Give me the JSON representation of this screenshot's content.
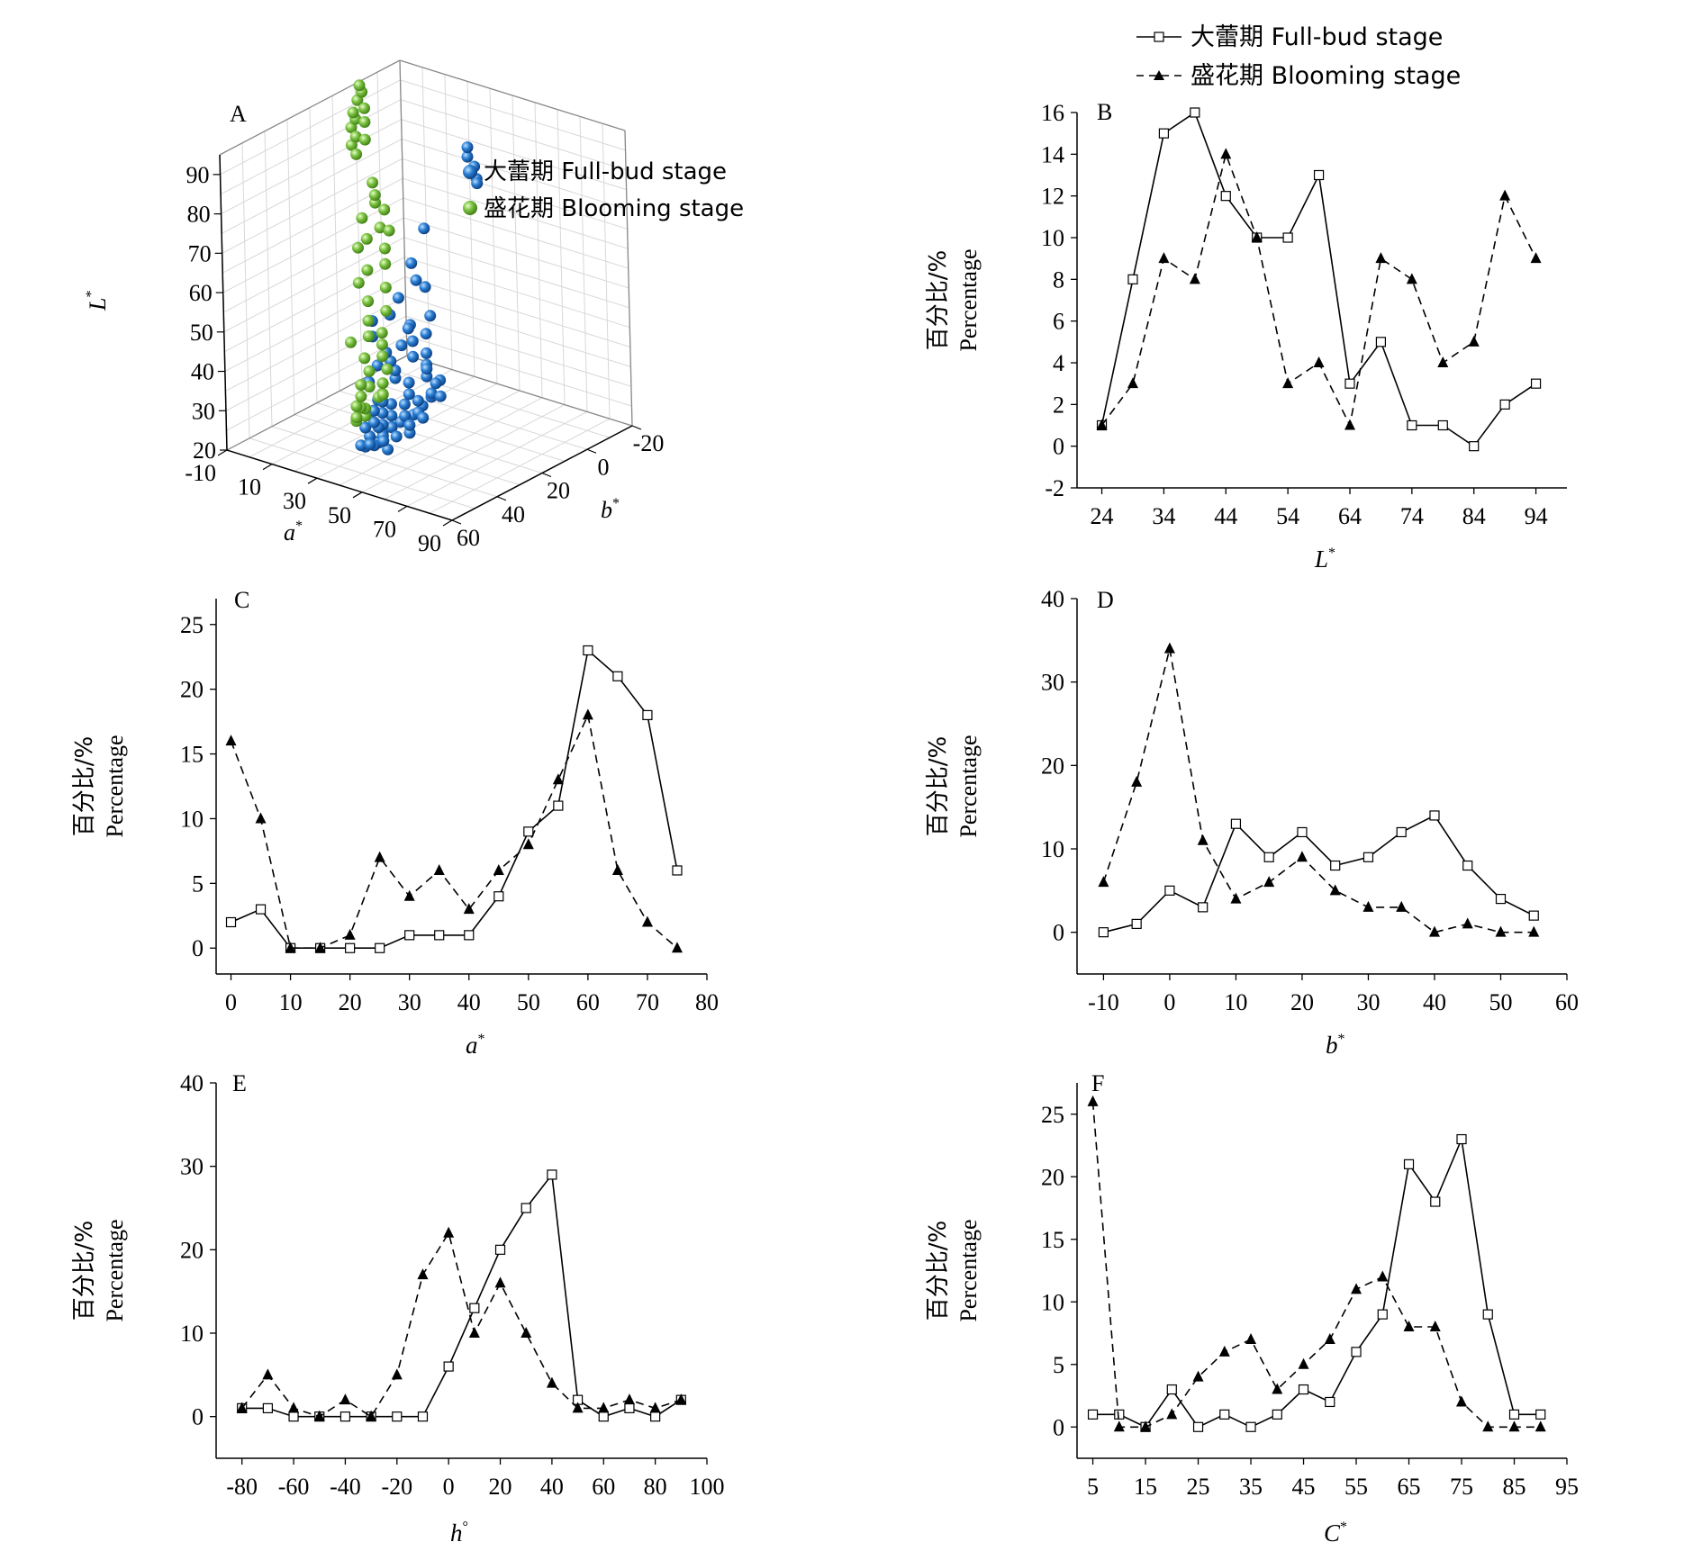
{
  "legend": {
    "full_bud": "大蕾期 Full-bud stage",
    "blooming": "盛花期 Blooming stage"
  },
  "ylabel_cn": "百分比/%",
  "ylabel_en": "Percentage",
  "chart_data": [
    {
      "id": "A",
      "panel": "A",
      "type": "scatter3d",
      "axes": {
        "x": "a*",
        "y": "b*",
        "z": "L*"
      },
      "xlim": [
        -10,
        90
      ],
      "ylim": [
        -20,
        60
      ],
      "zlim": [
        20,
        95
      ],
      "x_ticks": [
        "-10",
        "10",
        "30",
        "50",
        "70",
        "90"
      ],
      "y_ticks": [
        "-20",
        "0",
        "20",
        "40",
        "60"
      ],
      "z_ticks": [
        "20",
        "30",
        "40",
        "50",
        "60",
        "70",
        "80",
        "90"
      ],
      "xlabel": "a",
      "ylabel": "b",
      "zlabel": "L",
      "label_sup": "*",
      "series": [
        {
          "name": "大蕾期 Full-bud stage",
          "color": "#1f6fc4",
          "points": [
            [
              55,
              15,
              95
            ],
            [
              60,
              20,
              95
            ],
            [
              65,
              22,
              94
            ],
            [
              68,
              24,
              92
            ],
            [
              62,
              18,
              88
            ],
            [
              50,
              30,
              78
            ],
            [
              48,
              34,
              70
            ],
            [
              52,
              36,
              67
            ],
            [
              56,
              36,
              66
            ],
            [
              48,
              40,
              63
            ],
            [
              60,
              38,
              60
            ],
            [
              55,
              42,
              58
            ],
            [
              62,
              42,
              57
            ],
            [
              58,
              44,
              55
            ],
            [
              64,
              44,
              53
            ],
            [
              55,
              46,
              54
            ],
            [
              60,
              46,
              52
            ],
            [
              68,
              48,
              52
            ],
            [
              66,
              46,
              50
            ],
            [
              70,
              50,
              50
            ],
            [
              72,
              48,
              48
            ],
            [
              62,
              50,
              47
            ],
            [
              58,
              52,
              48
            ],
            [
              74,
              52,
              47
            ],
            [
              76,
              50,
              46
            ],
            [
              64,
              52,
              45
            ],
            [
              70,
              54,
              45
            ],
            [
              66,
              56,
              44
            ],
            [
              60,
              56,
              43
            ],
            [
              72,
              56,
              43
            ],
            [
              68,
              58,
              42
            ],
            [
              74,
              56,
              42
            ],
            [
              62,
              58,
              41
            ],
            [
              70,
              58,
              40
            ],
            [
              64,
              60,
              39
            ],
            [
              58,
              58,
              38
            ],
            [
              66,
              60,
              37
            ],
            [
              60,
              60,
              36
            ],
            [
              72,
              60,
              39
            ],
            [
              56,
              56,
              40
            ],
            [
              52,
              54,
              42
            ],
            [
              50,
              50,
              40
            ],
            [
              48,
              52,
              38
            ],
            [
              54,
              56,
              36
            ],
            [
              58,
              60,
              34
            ],
            [
              62,
              60,
              33
            ],
            [
              50,
              56,
              33
            ],
            [
              54,
              58,
              32
            ],
            [
              46,
              50,
              34
            ],
            [
              44,
              48,
              36
            ],
            [
              40,
              46,
              42
            ],
            [
              42,
              44,
              46
            ],
            [
              38,
              42,
              52
            ],
            [
              36,
              40,
              55
            ],
            [
              44,
              40,
              58
            ],
            [
              50,
              38,
              55
            ],
            [
              46,
              44,
              50
            ],
            [
              52,
              48,
              50
            ],
            [
              56,
              50,
              49
            ],
            [
              80,
              54,
              52
            ],
            [
              78,
              56,
              48
            ],
            [
              76,
              58,
              46
            ],
            [
              74,
              60,
              44
            ],
            [
              70,
              62,
              42
            ],
            [
              66,
              62,
              40
            ],
            [
              62,
              62,
              38
            ],
            [
              58,
              62,
              35
            ],
            [
              54,
              60,
              33
            ],
            [
              50,
              58,
              31
            ],
            [
              46,
              56,
              30
            ],
            [
              48,
              54,
              30
            ],
            [
              52,
              52,
              31
            ],
            [
              42,
              50,
              32
            ]
          ]
        },
        {
          "name": "盛花期 Blooming stage",
          "color": "#7ac142",
          "points": [
            [
              -8,
              0,
              95
            ],
            [
              -6,
              1,
              94
            ],
            [
              -7,
              2,
              92
            ],
            [
              -5,
              1,
              90
            ],
            [
              -8,
              3,
              89
            ],
            [
              -6,
              4,
              88
            ],
            [
              -4,
              2,
              87
            ],
            [
              -7,
              5,
              86
            ],
            [
              -5,
              5,
              84
            ],
            [
              -3,
              3,
              83
            ],
            [
              -6,
              6,
              82
            ],
            [
              -4,
              6,
              80
            ],
            [
              5,
              8,
              75
            ],
            [
              8,
              10,
              73
            ],
            [
              10,
              12,
              72
            ],
            [
              12,
              10,
              70
            ],
            [
              6,
              14,
              68
            ],
            [
              14,
              14,
              67
            ],
            [
              16,
              12,
              66
            ],
            [
              10,
              16,
              64
            ],
            [
              18,
              16,
              63
            ],
            [
              8,
              18,
              62
            ],
            [
              20,
              18,
              60
            ],
            [
              14,
              20,
              58
            ],
            [
              22,
              20,
              55
            ],
            [
              12,
              22,
              55
            ],
            [
              18,
              24,
              52
            ],
            [
              24,
              22,
              50
            ],
            [
              20,
              26,
              48
            ],
            [
              26,
              26,
              46
            ],
            [
              22,
              28,
              45
            ],
            [
              28,
              28,
              44
            ],
            [
              16,
              30,
              43
            ],
            [
              30,
              30,
              42
            ],
            [
              24,
              32,
              41
            ],
            [
              34,
              32,
              40
            ],
            [
              28,
              34,
              39
            ],
            [
              36,
              36,
              38
            ],
            [
              32,
              38,
              37
            ],
            [
              38,
              40,
              36
            ],
            [
              40,
              40,
              37
            ],
            [
              42,
              42,
              38
            ],
            [
              44,
              44,
              39
            ],
            [
              46,
              46,
              40
            ],
            [
              48,
              48,
              41
            ],
            [
              50,
              50,
              42
            ],
            [
              36,
              44,
              34
            ],
            [
              32,
              40,
              32
            ],
            [
              28,
              38,
              31
            ],
            [
              24,
              36,
              30
            ],
            [
              40,
              48,
              35
            ],
            [
              44,
              50,
              36
            ],
            [
              38,
              46,
              33
            ],
            [
              20,
              30,
              30
            ],
            [
              16,
              26,
              31
            ],
            [
              30,
              42,
              30
            ],
            [
              34,
              46,
              31
            ]
          ]
        }
      ]
    },
    {
      "id": "B",
      "panel": "B",
      "type": "line",
      "x": [
        24,
        29,
        34,
        39,
        44,
        49,
        54,
        59,
        64,
        69,
        74,
        79,
        84,
        89,
        94
      ],
      "series": [
        {
          "name": "大蕾期 Full-bud stage",
          "values": [
            1,
            8,
            15,
            16,
            12,
            10,
            10,
            13,
            3,
            5,
            1,
            1,
            0,
            2,
            3
          ]
        },
        {
          "name": "盛花期 Blooming stage",
          "values": [
            1,
            3,
            9,
            8,
            14,
            10,
            3,
            4,
            1,
            9,
            8,
            4,
            5,
            12,
            9
          ]
        }
      ],
      "xlim": [
        20,
        99
      ],
      "ylim": [
        -2,
        16
      ],
      "x_ticks": [
        24,
        34,
        44,
        54,
        64,
        74,
        84,
        94
      ],
      "y_ticks": [
        -2,
        0,
        2,
        4,
        6,
        8,
        10,
        12,
        14,
        16
      ],
      "xlabel": "L",
      "label_sup": "*",
      "ylabel": "百分比/% Percentage"
    },
    {
      "id": "C",
      "panel": "C",
      "type": "line",
      "x": [
        0,
        5,
        10,
        15,
        20,
        25,
        30,
        35,
        40,
        45,
        50,
        55,
        60,
        65,
        70,
        75
      ],
      "series": [
        {
          "name": "大蕾期 Full-bud stage",
          "values": [
            2,
            3,
            0,
            0,
            0,
            0,
            1,
            1,
            1,
            4,
            9,
            11,
            23,
            21,
            18,
            6
          ]
        },
        {
          "name": "盛花期 Blooming stage",
          "values": [
            16,
            10,
            0,
            0,
            1,
            7,
            4,
            6,
            3,
            6,
            8,
            13,
            18,
            6,
            2,
            0
          ]
        }
      ],
      "xlim": [
        -2.5,
        80
      ],
      "ylim": [
        -2,
        27
      ],
      "x_ticks": [
        0,
        10,
        20,
        30,
        40,
        50,
        60,
        70,
        80
      ],
      "y_ticks": [
        0,
        5,
        10,
        15,
        20,
        25
      ],
      "xlabel": "a",
      "label_sup": "*",
      "ylabel": "百分比/% Percentage"
    },
    {
      "id": "D",
      "panel": "D",
      "type": "line",
      "x": [
        -10,
        -5,
        0,
        5,
        10,
        15,
        20,
        25,
        30,
        35,
        40,
        45,
        50,
        55
      ],
      "series": [
        {
          "name": "大蕾期 Full-bud stage",
          "values": [
            0,
            1,
            5,
            3,
            13,
            9,
            12,
            8,
            9,
            12,
            14,
            8,
            4,
            2
          ]
        },
        {
          "name": "盛花期 Blooming stage",
          "values": [
            6,
            18,
            34,
            11,
            4,
            6,
            9,
            5,
            3,
            3,
            0,
            1,
            0,
            0
          ]
        }
      ],
      "xlim": [
        -14,
        60
      ],
      "ylim": [
        -5,
        40
      ],
      "x_ticks": [
        -10,
        0,
        10,
        20,
        30,
        40,
        50,
        60
      ],
      "y_ticks": [
        0,
        10,
        20,
        30,
        40
      ],
      "xlabel": "b",
      "label_sup": "*",
      "ylabel": "百分比/% Percentage"
    },
    {
      "id": "E",
      "panel": "E",
      "type": "line",
      "x": [
        -80,
        -70,
        -60,
        -50,
        -40,
        -30,
        -20,
        -10,
        0,
        10,
        20,
        30,
        40,
        50,
        60,
        70,
        80,
        90
      ],
      "series": [
        {
          "name": "大蕾期 Full-bud stage",
          "values": [
            1,
            1,
            0,
            0,
            0,
            0,
            0,
            0,
            6,
            13,
            20,
            25,
            29,
            2,
            0,
            1,
            0,
            2
          ]
        },
        {
          "name": "盛花期 Blooming stage",
          "values": [
            1,
            5,
            1,
            0,
            2,
            0,
            5,
            17,
            22,
            10,
            16,
            10,
            4,
            1,
            1,
            2,
            1,
            2
          ]
        }
      ],
      "xlim": [
        -90,
        100
      ],
      "ylim": [
        -5,
        40
      ],
      "x_ticks": [
        -80,
        -60,
        -40,
        -20,
        0,
        20,
        40,
        60,
        80,
        100
      ],
      "y_ticks": [
        0,
        10,
        20,
        30,
        40
      ],
      "xlabel": "h",
      "label_sup": "°",
      "ylabel": "百分比/% Percentage"
    },
    {
      "id": "F",
      "panel": "F",
      "type": "line",
      "x": [
        5,
        10,
        15,
        20,
        25,
        30,
        35,
        40,
        45,
        50,
        55,
        60,
        65,
        70,
        75,
        80,
        85,
        90
      ],
      "series": [
        {
          "name": "大蕾期 Full-bud stage",
          "values": [
            1,
            1,
            0,
            3,
            0,
            1,
            0,
            1,
            3,
            2,
            6,
            9,
            21,
            18,
            23,
            9,
            1,
            1
          ]
        },
        {
          "name": "盛花期 Blooming stage",
          "values": [
            26,
            0,
            0,
            1,
            4,
            6,
            7,
            3,
            5,
            7,
            11,
            12,
            8,
            8,
            2,
            0,
            0,
            0
          ]
        }
      ],
      "xlim": [
        2,
        95
      ],
      "ylim": [
        -2.5,
        27.5
      ],
      "x_ticks": [
        5,
        15,
        25,
        35,
        45,
        55,
        65,
        75,
        85,
        95
      ],
      "y_ticks": [
        0,
        5,
        10,
        15,
        20,
        25
      ],
      "xlabel": "C",
      "label_sup": "*",
      "ylabel": "百分比/% Percentage"
    }
  ]
}
